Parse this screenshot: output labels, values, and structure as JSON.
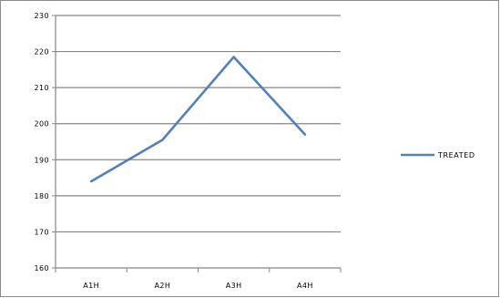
{
  "chart_data": {
    "type": "line",
    "categories": [
      "A1H",
      "A2H",
      "A3H",
      "A4H"
    ],
    "series": [
      {
        "name": "TREATED",
        "values": [
          184,
          195.5,
          218.5,
          197
        ]
      }
    ],
    "y_ticks": [
      "160",
      "170",
      "180",
      "190",
      "200",
      "210",
      "220",
      "230"
    ],
    "ylim": [
      160,
      230
    ],
    "grid": "horizontal",
    "legend_position": "right",
    "colors": {
      "series": "#4f81bd",
      "grid": "#868686",
      "axis": "#868686",
      "text": "#000000"
    }
  }
}
